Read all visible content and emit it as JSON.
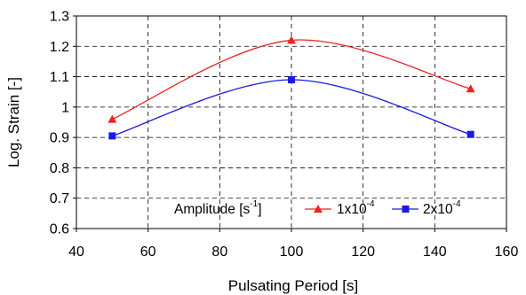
{
  "chart_data": {
    "type": "line",
    "title": "",
    "xlabel": "Pulsating Period [s]",
    "ylabel": "Log. Strain [-]",
    "xlim": [
      40,
      160
    ],
    "ylim": [
      0.6,
      1.3
    ],
    "xticks": [
      40,
      60,
      80,
      100,
      120,
      140,
      160
    ],
    "yticks": [
      0.6,
      0.7,
      0.8,
      0.9,
      1.0,
      1.1,
      1.2,
      1.3
    ],
    "xtick_labels": [
      "40",
      "60",
      "80",
      "100",
      "120",
      "140",
      "160"
    ],
    "ytick_labels": [
      "0.6",
      "0.7",
      "0.8",
      "0.9",
      "1",
      "1.1",
      "1.2",
      "1.3"
    ],
    "grid": true,
    "smooth": true,
    "legend": {
      "title_base": "Amplitude [s",
      "title_sup": "-1",
      "title_end": "]",
      "placement": "bottom-right"
    },
    "series": [
      {
        "name_base": "1x10",
        "name_sup": "-4",
        "color": "#ee2222",
        "marker": "triangle",
        "x": [
          50,
          100,
          150
        ],
        "y": [
          0.96,
          1.22,
          1.06
        ]
      },
      {
        "name_base": "2x10",
        "name_sup": "-4",
        "color": "#1a1ae0",
        "marker": "square",
        "x": [
          50,
          100,
          150
        ],
        "y": [
          0.905,
          1.09,
          0.91
        ]
      }
    ]
  }
}
